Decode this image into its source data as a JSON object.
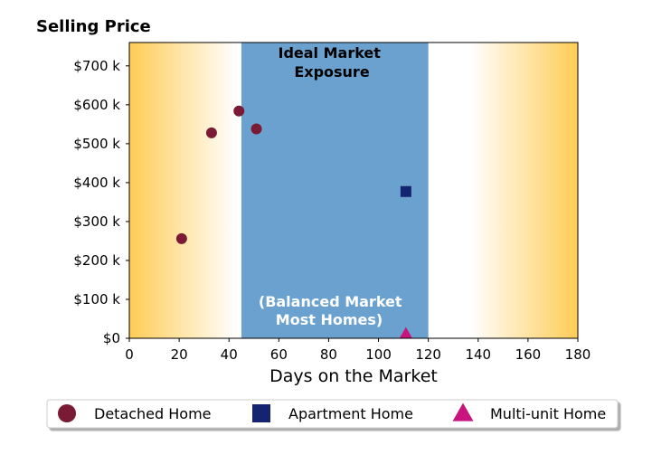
{
  "chart_data": {
    "type": "scatter",
    "title": "Selling Price",
    "xlabel": "Days on the Market",
    "ylabel": "",
    "xlim": [
      0,
      180
    ],
    "ylim": [
      0,
      760000
    ],
    "x_ticks": [
      0,
      20,
      40,
      60,
      80,
      100,
      120,
      140,
      160,
      180
    ],
    "x_tick_labels": [
      "0",
      "20",
      "40",
      "60",
      "80",
      "100",
      "120",
      "140",
      "160",
      "180"
    ],
    "y_ticks": [
      0,
      100000,
      200000,
      300000,
      400000,
      500000,
      600000,
      700000
    ],
    "y_tick_labels": [
      "$0",
      "$100 k",
      "$200 k",
      "$300 k",
      "$400 k",
      "$500 k",
      "$600 k",
      "$700 k"
    ],
    "grid": false,
    "shaded_region": {
      "x_range": [
        45,
        120
      ],
      "color": "#6aa1cf",
      "label_top": [
        "Ideal Market",
        "Exposure"
      ],
      "label_bottom": [
        "(Balanced Market",
        "Most Homes)"
      ]
    },
    "background_gradient": {
      "edge_color": "#ffcc55",
      "center_color": "#ffffff"
    },
    "legend_position": "bottom",
    "series": [
      {
        "name": "Detached Home",
        "marker": "circle",
        "color": "#7a1a35",
        "points": [
          {
            "x": 21,
            "y": 256000
          },
          {
            "x": 33,
            "y": 528000
          },
          {
            "x": 44,
            "y": 584000
          },
          {
            "x": 51,
            "y": 538000
          }
        ]
      },
      {
        "name": "Apartment Home",
        "marker": "square",
        "color": "#152470",
        "points": [
          {
            "x": 111,
            "y": 377000
          }
        ]
      },
      {
        "name": "Multi-unit Home",
        "marker": "triangle",
        "color": "#c8157e",
        "points": [
          {
            "x": 111,
            "y": 13000
          }
        ]
      }
    ]
  }
}
